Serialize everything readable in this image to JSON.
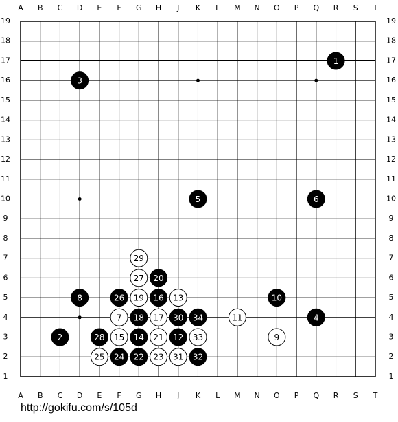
{
  "columns": [
    "A",
    "B",
    "C",
    "D",
    "E",
    "F",
    "G",
    "H",
    "J",
    "K",
    "L",
    "M",
    "N",
    "O",
    "P",
    "Q",
    "R",
    "S",
    "T"
  ],
  "rows": [
    "19",
    "18",
    "17",
    "16",
    "15",
    "14",
    "13",
    "12",
    "11",
    "10",
    "9",
    "8",
    "7",
    "6",
    "5",
    "4",
    "3",
    "2",
    "1"
  ],
  "stones": [
    {
      "color": "black",
      "col": "R",
      "row": "17",
      "label": "1"
    },
    {
      "color": "black",
      "col": "C",
      "row": "3",
      "label": "2"
    },
    {
      "color": "black",
      "col": "D",
      "row": "16",
      "label": "3"
    },
    {
      "color": "black",
      "col": "Q",
      "row": "4",
      "label": "4"
    },
    {
      "color": "black",
      "col": "K",
      "row": "10",
      "label": "5"
    },
    {
      "color": "black",
      "col": "Q",
      "row": "10",
      "label": "6"
    },
    {
      "color": "white",
      "col": "F",
      "row": "4",
      "label": "7"
    },
    {
      "color": "black",
      "col": "D",
      "row": "5",
      "label": "8"
    },
    {
      "color": "white",
      "col": "O",
      "row": "3",
      "label": "9"
    },
    {
      "color": "black",
      "col": "O",
      "row": "5",
      "label": "10"
    },
    {
      "color": "white",
      "col": "M",
      "row": "4",
      "label": "11"
    },
    {
      "color": "black",
      "col": "J",
      "row": "3",
      "label": "12"
    },
    {
      "color": "white",
      "col": "J",
      "row": "5",
      "label": "13"
    },
    {
      "color": "black",
      "col": "G",
      "row": "3",
      "label": "14"
    },
    {
      "color": "white",
      "col": "F",
      "row": "3",
      "label": "15"
    },
    {
      "color": "black",
      "col": "H",
      "row": "5",
      "label": "16"
    },
    {
      "color": "white",
      "col": "H",
      "row": "4",
      "label": "17"
    },
    {
      "color": "black",
      "col": "G",
      "row": "4",
      "label": "18"
    },
    {
      "color": "white",
      "col": "G",
      "row": "5",
      "label": "19"
    },
    {
      "color": "black",
      "col": "H",
      "row": "6",
      "label": "20"
    },
    {
      "color": "white",
      "col": "H",
      "row": "3",
      "label": "21"
    },
    {
      "color": "black",
      "col": "G",
      "row": "2",
      "label": "22"
    },
    {
      "color": "white",
      "col": "H",
      "row": "2",
      "label": "23"
    },
    {
      "color": "black",
      "col": "F",
      "row": "2",
      "label": "24"
    },
    {
      "color": "white",
      "col": "E",
      "row": "2",
      "label": "25"
    },
    {
      "color": "black",
      "col": "F",
      "row": "5",
      "label": "26"
    },
    {
      "color": "white",
      "col": "G",
      "row": "6",
      "label": "27"
    },
    {
      "color": "black",
      "col": "E",
      "row": "3",
      "label": "28"
    },
    {
      "color": "white",
      "col": "G",
      "row": "7",
      "label": "29"
    },
    {
      "color": "black",
      "col": "J",
      "row": "4",
      "label": "30"
    },
    {
      "color": "white",
      "col": "J",
      "row": "2",
      "label": "31"
    },
    {
      "color": "black",
      "col": "K",
      "row": "2",
      "label": "32"
    },
    {
      "color": "white",
      "col": "K",
      "row": "3",
      "label": "33"
    },
    {
      "color": "black",
      "col": "K",
      "row": "4",
      "label": "34"
    }
  ],
  "url": "http://gokifu.com/s/105d"
}
